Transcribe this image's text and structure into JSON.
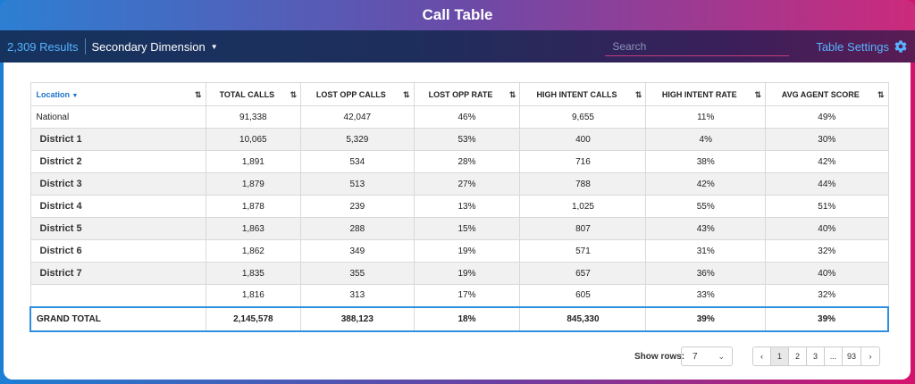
{
  "window": {
    "title": "Call Table"
  },
  "toolbar": {
    "results": "2,309 Results",
    "secondary_dimension": "Secondary Dimension",
    "search_placeholder": "Search",
    "settings_label": "Table Settings"
  },
  "colors": {
    "accent": "#2f8ee0",
    "link": "#1a73c9"
  },
  "table": {
    "headers": [
      "Location",
      "TOTAL CALLS",
      "LOST OPP CALLS",
      "LOST OPP RATE",
      "HIGH INTENT CALLS",
      "HIGH INTENT RATE",
      "AVG AGENT SCORE"
    ],
    "rows": [
      [
        "National",
        "91,338",
        "42,047",
        "46%",
        "9,655",
        "11%",
        "49%"
      ],
      [
        "District 1",
        "10,065",
        "5,329",
        "53%",
        "400",
        "4%",
        "30%"
      ],
      [
        "District 2",
        "1,891",
        "534",
        "28%",
        "716",
        "38%",
        "42%"
      ],
      [
        "District 3",
        "1,879",
        "513",
        "27%",
        "788",
        "42%",
        "44%"
      ],
      [
        "District 4",
        "1,878",
        "239",
        "13%",
        "1,025",
        "55%",
        "51%"
      ],
      [
        "District 5",
        "1,863",
        "288",
        "15%",
        "807",
        "43%",
        "40%"
      ],
      [
        "District 6",
        "1,862",
        "349",
        "19%",
        "571",
        "31%",
        "32%"
      ],
      [
        "District 7",
        "1,835",
        "355",
        "19%",
        "657",
        "36%",
        "40%"
      ],
      [
        "",
        "1,816",
        "313",
        "17%",
        "605",
        "33%",
        "32%"
      ]
    ],
    "total": [
      "GRAND TOTAL",
      "2,145,578",
      "388,123",
      "18%",
      "845,330",
      "39%",
      "39%"
    ]
  },
  "footer": {
    "show_rows_label": "Show rows:",
    "rows_value": "7",
    "pages": [
      "1",
      "2",
      "3",
      "...",
      "93"
    ]
  }
}
